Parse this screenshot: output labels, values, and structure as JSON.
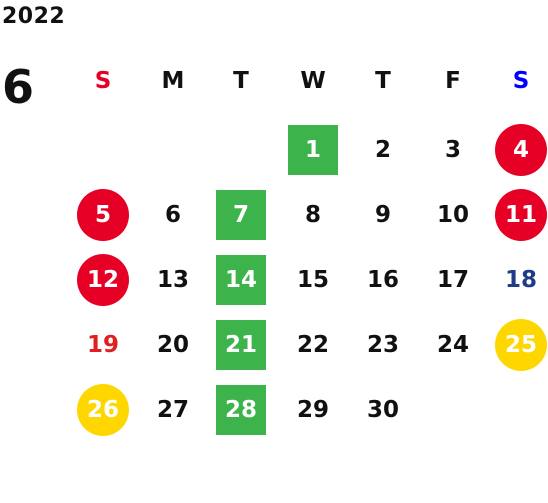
{
  "calendar": {
    "year": "2022",
    "month": "6",
    "weekdays": [
      "S",
      "M",
      "T",
      "W",
      "T",
      "F",
      "S"
    ],
    "colors": {
      "sunday_header": "#e60026",
      "saturday_header": "#0000ff",
      "text": "#111111",
      "green_box": "#3cb44b",
      "red_circle": "#e60026",
      "yellow_circle": "#ffd700",
      "saturday_text": "#1f3c88",
      "sunday_text": "#e02020"
    },
    "weeks": [
      [
        {
          "day": "",
          "style": "empty"
        },
        {
          "day": "",
          "style": "empty"
        },
        {
          "day": "",
          "style": "empty"
        },
        {
          "day": "1",
          "style": "green"
        },
        {
          "day": "2",
          "style": "normal"
        },
        {
          "day": "3",
          "style": "normal"
        },
        {
          "day": "4",
          "style": "red"
        }
      ],
      [
        {
          "day": "5",
          "style": "red"
        },
        {
          "day": "6",
          "style": "normal"
        },
        {
          "day": "7",
          "style": "green"
        },
        {
          "day": "8",
          "style": "normal"
        },
        {
          "day": "9",
          "style": "normal"
        },
        {
          "day": "10",
          "style": "normal"
        },
        {
          "day": "11",
          "style": "red"
        }
      ],
      [
        {
          "day": "12",
          "style": "red"
        },
        {
          "day": "13",
          "style": "normal"
        },
        {
          "day": "14",
          "style": "green"
        },
        {
          "day": "15",
          "style": "normal"
        },
        {
          "day": "16",
          "style": "normal"
        },
        {
          "day": "17",
          "style": "normal"
        },
        {
          "day": "18",
          "style": "saturday"
        }
      ],
      [
        {
          "day": "19",
          "style": "sunday"
        },
        {
          "day": "20",
          "style": "normal"
        },
        {
          "day": "21",
          "style": "green"
        },
        {
          "day": "22",
          "style": "normal"
        },
        {
          "day": "23",
          "style": "normal"
        },
        {
          "day": "24",
          "style": "normal"
        },
        {
          "day": "25",
          "style": "yellow"
        }
      ],
      [
        {
          "day": "26",
          "style": "yellow"
        },
        {
          "day": "27",
          "style": "normal"
        },
        {
          "day": "28",
          "style": "green"
        },
        {
          "day": "29",
          "style": "normal"
        },
        {
          "day": "30",
          "style": "normal"
        },
        {
          "day": "",
          "style": "empty"
        },
        {
          "day": "",
          "style": "empty"
        }
      ]
    ]
  }
}
